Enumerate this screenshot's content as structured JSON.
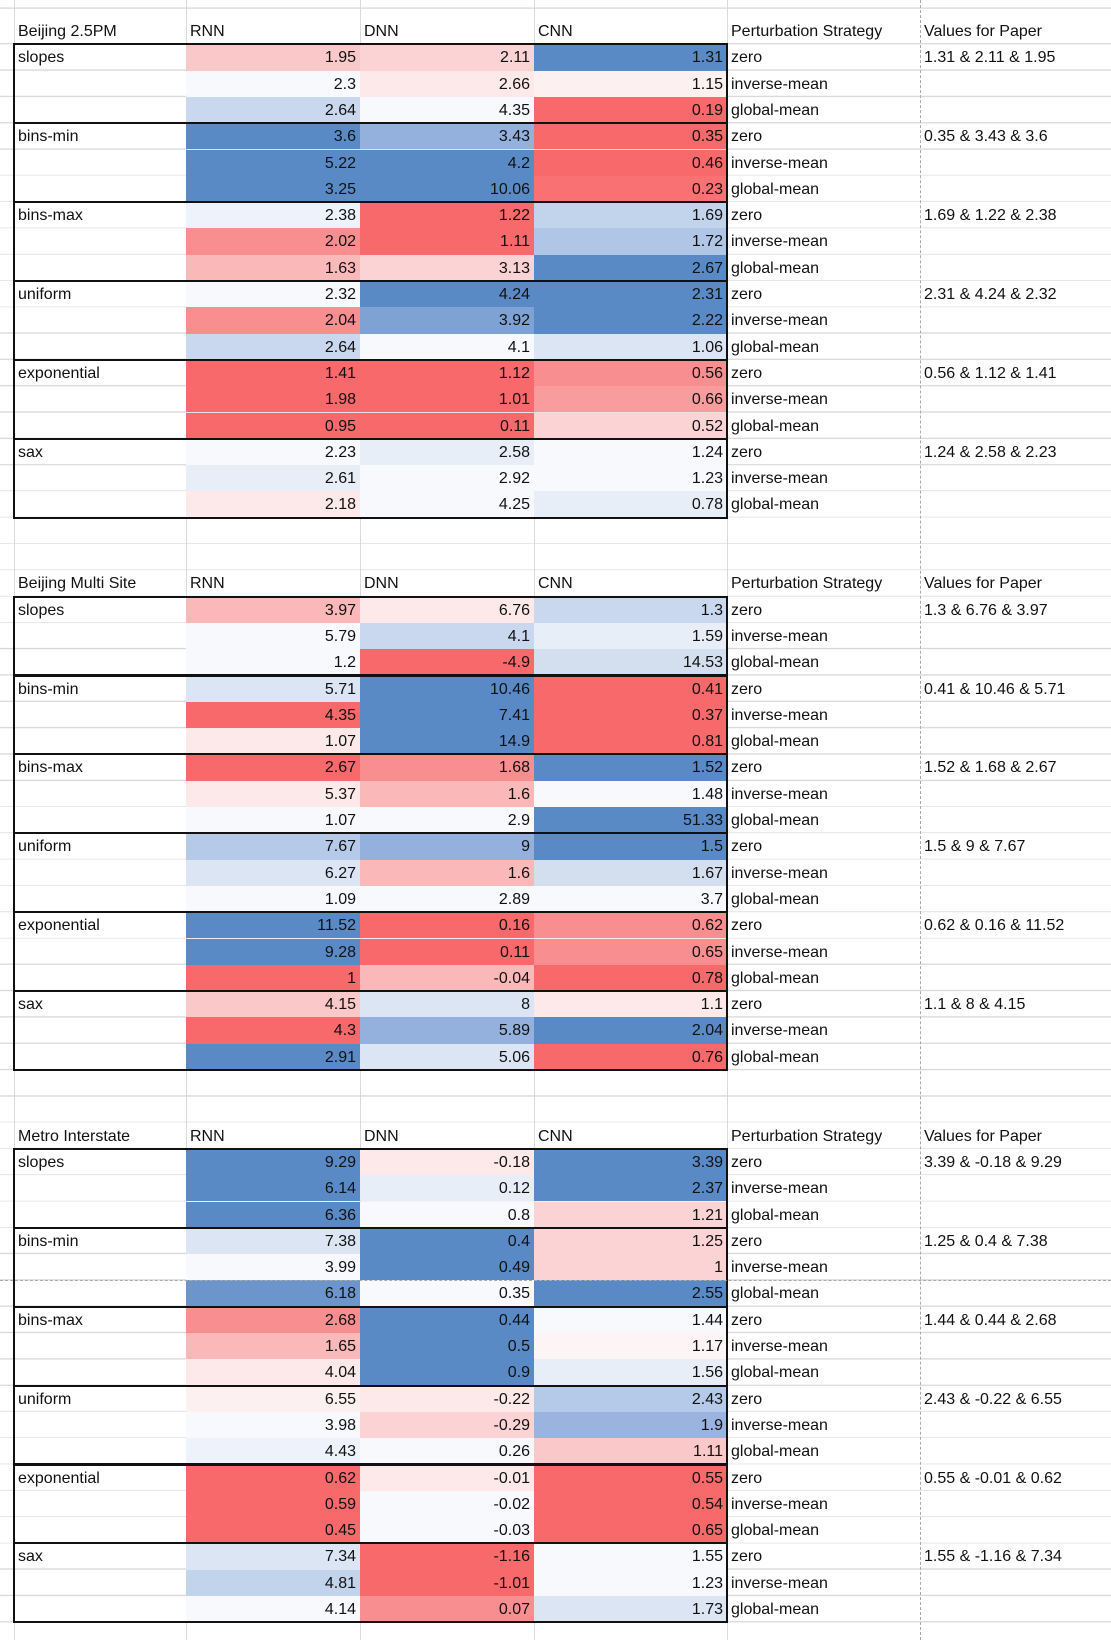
{
  "sections": [
    {
      "title": "Beijing 2.5PM",
      "columns": [
        "RNN",
        "DNN",
        "CNN",
        "Perturbation Strategy",
        "Values for Paper"
      ],
      "groups": [
        {
          "name": "slopes",
          "paper": "1.31 & 2.11 & 1.95",
          "rows": [
            {
              "values": [
                1.95,
                2.11,
                1.31
              ],
              "colors": [
                "#fbc8c9",
                "#fcd3d4",
                "#5a8ac6"
              ],
              "strategy": "zero"
            },
            {
              "values": [
                2.3,
                2.66,
                1.15
              ],
              "colors": [
                "#f8f9fd",
                "#fde9ea",
                "#fdf0f1"
              ],
              "strategy": "inverse-mean"
            },
            {
              "values": [
                2.64,
                4.35,
                0.19
              ],
              "colors": [
                "#c9d8ee",
                "#f8f9fd",
                "#f8696b"
              ],
              "strategy": "global-mean"
            }
          ]
        },
        {
          "name": "bins-min",
          "paper": "0.35 & 3.43 & 3.6",
          "rows": [
            {
              "values": [
                3.6,
                3.43,
                0.35
              ],
              "colors": [
                "#5a8ac6",
                "#94b0dc",
                "#f8696b"
              ],
              "strategy": "zero"
            },
            {
              "values": [
                5.22,
                4.2,
                0.46
              ],
              "colors": [
                "#5a8ac6",
                "#5a8ac6",
                "#f8696b"
              ],
              "strategy": "inverse-mean"
            },
            {
              "values": [
                3.25,
                10.06,
                0.23
              ],
              "colors": [
                "#5a8ac6",
                "#5a8ac6",
                "#f97173"
              ],
              "strategy": "global-mean"
            }
          ]
        },
        {
          "name": "bins-max",
          "paper": "1.69 & 1.22 & 2.38",
          "rows": [
            {
              "values": [
                2.38,
                1.22,
                1.69
              ],
              "colors": [
                "#eef2fa",
                "#f8696b",
                "#c2d3ec"
              ],
              "strategy": "zero"
            },
            {
              "values": [
                2.02,
                1.11,
                1.72
              ],
              "colors": [
                "#f98e90",
                "#f8696b",
                "#b0c6e6"
              ],
              "strategy": "inverse-mean"
            },
            {
              "values": [
                1.63,
                3.13,
                2.67
              ],
              "colors": [
                "#fbb8b9",
                "#fcd3d4",
                "#5a8ac6"
              ],
              "strategy": "global-mean"
            }
          ]
        },
        {
          "name": "uniform",
          "paper": "2.31 & 4.24 & 2.32",
          "rows": [
            {
              "values": [
                2.32,
                4.24,
                2.31
              ],
              "colors": [
                "#f8f9fd",
                "#5a8ac6",
                "#5a8ac6"
              ],
              "strategy": "zero"
            },
            {
              "values": [
                2.04,
                3.92,
                2.22
              ],
              "colors": [
                "#f98e90",
                "#7ea2d4",
                "#5a8ac6"
              ],
              "strategy": "inverse-mean"
            },
            {
              "values": [
                2.64,
                4.1,
                1.06
              ],
              "colors": [
                "#c9d8ee",
                "#f8f9fd",
                "#dce5f3"
              ],
              "strategy": "global-mean"
            }
          ]
        },
        {
          "name": "exponential",
          "paper": "0.56 & 1.12 & 1.41",
          "rows": [
            {
              "values": [
                1.41,
                1.12,
                0.56
              ],
              "colors": [
                "#f8696b",
                "#f8696b",
                "#f98e90"
              ],
              "strategy": "zero"
            },
            {
              "values": [
                1.98,
                1.01,
                0.66
              ],
              "colors": [
                "#f8696b",
                "#f8696b",
                "#f99c9e"
              ],
              "strategy": "inverse-mean"
            },
            {
              "values": [
                0.95,
                0.11,
                0.52
              ],
              "colors": [
                "#f8696b",
                "#f8696b",
                "#fcd3d4"
              ],
              "strategy": "global-mean"
            }
          ]
        },
        {
          "name": "sax",
          "paper": "1.24 & 2.58 & 2.23",
          "rows": [
            {
              "values": [
                2.23,
                2.58,
                1.24
              ],
              "colors": [
                "#f8f9fd",
                "#e8eef8",
                "#f8f9fd"
              ],
              "strategy": "zero"
            },
            {
              "values": [
                2.61,
                2.92,
                1.23
              ],
              "colors": [
                "#e8eef8",
                "#f8f9fd",
                "#f8f9fd"
              ],
              "strategy": "inverse-mean"
            },
            {
              "values": [
                2.18,
                4.25,
                0.78
              ],
              "colors": [
                "#fde9ea",
                "#f8f9fd",
                "#e8eef8"
              ],
              "strategy": "global-mean"
            }
          ]
        }
      ]
    },
    {
      "title": "Beijing Multi Site",
      "columns": [
        "RNN",
        "DNN",
        "CNN",
        "Perturbation Strategy",
        "Values for Paper"
      ],
      "groups": [
        {
          "name": "slopes",
          "paper": "1.3 & 6.76 & 3.97",
          "rows": [
            {
              "values": [
                3.97,
                6.76,
                1.3
              ],
              "colors": [
                "#fbb8b9",
                "#fde9ea",
                "#c9d8ee"
              ],
              "strategy": "zero"
            },
            {
              "values": [
                5.79,
                4.1,
                1.59
              ],
              "colors": [
                "#f8f9fd",
                "#c9d8ee",
                "#e8eef8"
              ],
              "strategy": "inverse-mean"
            },
            {
              "values": [
                1.2,
                -4.9,
                14.53
              ],
              "colors": [
                "#f8f9fd",
                "#f8696b",
                "#d3deef"
              ],
              "strategy": "global-mean"
            }
          ]
        },
        {
          "name": "bins-min",
          "paper": "0.41 & 10.46 & 5.71",
          "rows": [
            {
              "values": [
                5.71,
                10.46,
                0.41
              ],
              "colors": [
                "#dce5f3",
                "#5a8ac6",
                "#f8696b"
              ],
              "strategy": "zero"
            },
            {
              "values": [
                4.35,
                7.41,
                0.37
              ],
              "colors": [
                "#f8696b",
                "#5a8ac6",
                "#f8696b"
              ],
              "strategy": "inverse-mean"
            },
            {
              "values": [
                1.07,
                14.9,
                0.81
              ],
              "colors": [
                "#fde9ea",
                "#5a8ac6",
                "#f8696b"
              ],
              "strategy": "global-mean"
            }
          ]
        },
        {
          "name": "bins-max",
          "paper": "1.52 & 1.68 & 2.67",
          "rows": [
            {
              "values": [
                2.67,
                1.68,
                1.52
              ],
              "colors": [
                "#f8696b",
                "#f98e90",
                "#5a8ac6"
              ],
              "strategy": "zero"
            },
            {
              "values": [
                5.37,
                1.6,
                1.48
              ],
              "colors": [
                "#fde9ea",
                "#fbb8b9",
                "#f8f9fd"
              ],
              "strategy": "inverse-mean"
            },
            {
              "values": [
                1.07,
                2.9,
                51.33
              ],
              "colors": [
                "#f8f9fd",
                "#f8f9fd",
                "#5a8ac6"
              ],
              "strategy": "global-mean"
            }
          ]
        },
        {
          "name": "uniform",
          "paper": "1.5 & 9 & 7.67",
          "rows": [
            {
              "values": [
                7.67,
                9,
                1.5
              ],
              "colors": [
                "#b5c9e8",
                "#94b0dc",
                "#5a8ac6"
              ],
              "strategy": "zero"
            },
            {
              "values": [
                6.27,
                1.6,
                1.67
              ],
              "colors": [
                "#dce5f3",
                "#fbb8b9",
                "#d3deef"
              ],
              "strategy": "inverse-mean"
            },
            {
              "values": [
                1.09,
                2.89,
                3.7
              ],
              "colors": [
                "#f8f9fd",
                "#f8f9fd",
                "#f8f9fd"
              ],
              "strategy": "global-mean"
            }
          ]
        },
        {
          "name": "exponential",
          "paper": "0.62 & 0.16 & 11.52",
          "rows": [
            {
              "values": [
                11.52,
                0.16,
                0.62
              ],
              "colors": [
                "#5a8ac6",
                "#f8696b",
                "#f98e90"
              ],
              "strategy": "zero"
            },
            {
              "values": [
                9.28,
                0.11,
                0.65
              ],
              "colors": [
                "#5a8ac6",
                "#f8696b",
                "#f98e90"
              ],
              "strategy": "inverse-mean"
            },
            {
              "values": [
                1,
                -0.04,
                0.78
              ],
              "colors": [
                "#f8696b",
                "#fbb8b9",
                "#f8696b"
              ],
              "strategy": "global-mean"
            }
          ]
        },
        {
          "name": "sax",
          "paper": "1.1 & 8 & 4.15",
          "rows": [
            {
              "values": [
                4.15,
                8,
                1.1
              ],
              "colors": [
                "#fbc8c9",
                "#dce5f3",
                "#fde9ea"
              ],
              "strategy": "zero"
            },
            {
              "values": [
                4.3,
                5.89,
                2.04
              ],
              "colors": [
                "#f8696b",
                "#94b0dc",
                "#5a8ac6"
              ],
              "strategy": "inverse-mean"
            },
            {
              "values": [
                2.91,
                5.06,
                0.76
              ],
              "colors": [
                "#5a8ac6",
                "#dce5f3",
                "#f8696b"
              ],
              "strategy": "global-mean"
            }
          ]
        }
      ]
    },
    {
      "title": "Metro Interstate",
      "columns": [
        "RNN",
        "DNN",
        "CNN",
        "Perturbation Strategy",
        "Values for Paper"
      ],
      "groups": [
        {
          "name": "slopes",
          "paper": "3.39 & -0.18 & 9.29",
          "rows": [
            {
              "values": [
                9.29,
                -0.18,
                3.39
              ],
              "colors": [
                "#5a8ac6",
                "#fde9ea",
                "#5a8ac6"
              ],
              "strategy": "zero"
            },
            {
              "values": [
                6.14,
                0.12,
                2.37
              ],
              "colors": [
                "#5a8ac6",
                "#e8eef8",
                "#5a8ac6"
              ],
              "strategy": "inverse-mean"
            },
            {
              "values": [
                6.36,
                0.8,
                1.21
              ],
              "colors": [
                "#5a8ac6",
                "#f8f9fd",
                "#fcd3d4"
              ],
              "strategy": "global-mean"
            }
          ]
        },
        {
          "name": "bins-min",
          "paper": "1.25 & 0.4 & 7.38",
          "rows": [
            {
              "values": [
                7.38,
                0.4,
                1.25
              ],
              "colors": [
                "#dce5f3",
                "#5a8ac6",
                "#fcd3d4"
              ],
              "strategy": "zero"
            },
            {
              "values": [
                3.99,
                0.49,
                1
              ],
              "colors": [
                "#f8f9fd",
                "#5a8ac6",
                "#fcd3d4"
              ],
              "strategy": "inverse-mean"
            },
            {
              "values": [
                6.18,
                0.35,
                2.55
              ],
              "colors": [
                "#6b95cb",
                "#f8f9fd",
                "#5a8ac6"
              ],
              "strategy": "global-mean"
            }
          ]
        },
        {
          "name": "bins-max",
          "paper": "1.44 & 0.44 & 2.68",
          "rows": [
            {
              "values": [
                2.68,
                0.44,
                1.44
              ],
              "colors": [
                "#f98e90",
                "#5a8ac6",
                "#f8f9fd"
              ],
              "strategy": "zero"
            },
            {
              "values": [
                1.65,
                0.5,
                1.17
              ],
              "colors": [
                "#fbb8b9",
                "#5a8ac6",
                "#fdf4f5"
              ],
              "strategy": "inverse-mean"
            },
            {
              "values": [
                4.04,
                0.9,
                1.56
              ],
              "colors": [
                "#fde9ea",
                "#5a8ac6",
                "#e8eef8"
              ],
              "strategy": "global-mean"
            }
          ]
        },
        {
          "name": "uniform",
          "paper": "2.43 & -0.22 & 6.55",
          "rows": [
            {
              "values": [
                6.55,
                -0.22,
                2.43
              ],
              "colors": [
                "#fdf0f1",
                "#fde9ea",
                "#b5c9e8"
              ],
              "strategy": "zero"
            },
            {
              "values": [
                3.98,
                -0.29,
                1.9
              ],
              "colors": [
                "#f8f9fd",
                "#fcd3d4",
                "#9ab4df"
              ],
              "strategy": "inverse-mean"
            },
            {
              "values": [
                4.43,
                0.26,
                1.11
              ],
              "colors": [
                "#eef2fa",
                "#f8f9fd",
                "#fbc8c9"
              ],
              "strategy": "global-mean"
            }
          ]
        },
        {
          "name": "exponential",
          "paper": "0.55 & -0.01 & 0.62",
          "rows": [
            {
              "values": [
                0.62,
                -0.01,
                0.55
              ],
              "colors": [
                "#f8696b",
                "#fde9ea",
                "#f8696b"
              ],
              "strategy": "zero"
            },
            {
              "values": [
                0.59,
                -0.02,
                0.54
              ],
              "colors": [
                "#f8696b",
                "#f8f9fd",
                "#f8696b"
              ],
              "strategy": "inverse-mean"
            },
            {
              "values": [
                0.45,
                -0.03,
                0.65
              ],
              "colors": [
                "#f8696b",
                "#f8f9fd",
                "#f8696b"
              ],
              "strategy": "global-mean"
            }
          ]
        },
        {
          "name": "sax",
          "paper": "1.55 & -1.16 & 7.34",
          "rows": [
            {
              "values": [
                7.34,
                -1.16,
                1.55
              ],
              "colors": [
                "#dce5f3",
                "#f8696b",
                "#f8f9fd"
              ],
              "strategy": "zero"
            },
            {
              "values": [
                4.81,
                -1.01,
                1.23
              ],
              "colors": [
                "#c2d3ec",
                "#f8696b",
                "#f8f9fd"
              ],
              "strategy": "inverse-mean"
            },
            {
              "values": [
                4.14,
                0.07,
                1.73
              ],
              "colors": [
                "#f8f9fd",
                "#f98e90",
                "#dce5f3"
              ],
              "strategy": "global-mean"
            }
          ]
        }
      ]
    }
  ]
}
